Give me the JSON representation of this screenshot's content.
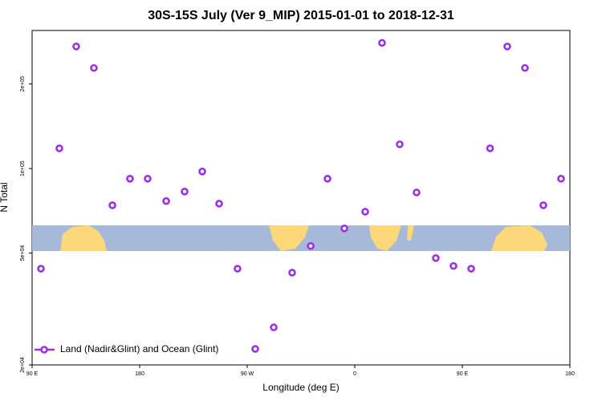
{
  "chart_data": {
    "type": "scatter",
    "title": "30S-15S July (Ver 9_MIP)   2015-01-01 to 2018-12-31",
    "x_label": "Longitude (deg E)",
    "y_label": "N Total",
    "log_y": true,
    "legend_position": "bottom-left",
    "xlim": [
      90,
      540
    ],
    "xticks": [
      {
        "value": 90,
        "label": "90 E"
      },
      180,
      {
        "value": 270,
        "label": "90 W"
      },
      {
        "value": 360,
        "label": "0"
      },
      {
        "value": 450,
        "label": "90 E"
      },
      {
        "value": 540,
        "label": "180"
      }
    ],
    "ylim": [
      20000,
      310000
    ],
    "yticks": [
      {
        "value": 20000,
        "label": "2e+04"
      },
      {
        "value": 50000,
        "label": "5e+04"
      },
      {
        "value": 100000,
        "label": "1e+05"
      },
      {
        "value": 200000,
        "label": "2e+05"
      }
    ],
    "series": [
      {
        "name": "Land (Nadir&Glint) and Ocean (Glint)",
        "color": "#9b30e6",
        "x": [
          97.4,
          112.8,
          126.9,
          141.7,
          157.2,
          171.9,
          186.7,
          202.2,
          217.6,
          232.4,
          246.5,
          261.9,
          276.7,
          292.2,
          307.6,
          323.1,
          337.2,
          351.3,
          368.7,
          382.8,
          397.6,
          411.7,
          427.8,
          442.6,
          457.4,
          473.2,
          487.6,
          502.4,
          517.8,
          532.6
        ],
        "values": [
          44000,
          118000,
          272000,
          228000,
          74000,
          92000,
          92000,
          76600,
          82800,
          97600,
          75000,
          44000,
          22800,
          27200,
          42600,
          53000,
          92000,
          61200,
          70200,
          280000,
          122000,
          82200,
          48000,
          45000,
          44000,
          118000,
          272000,
          228000,
          74000,
          92000
        ]
      }
    ]
  }
}
